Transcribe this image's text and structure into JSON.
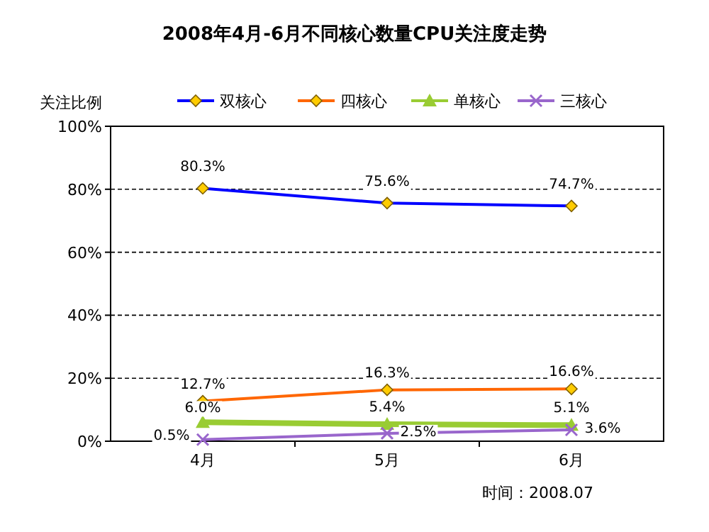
{
  "chart_data": {
    "type": "line",
    "title": "2008年4月-6月不同核心数量CPU关注度走势",
    "ylabel": "关注比例",
    "categories": [
      "4月",
      "5月",
      "6月"
    ],
    "series": [
      {
        "name": "双核心",
        "color": "#0000ff",
        "marker": "diamond",
        "values": [
          80.3,
          75.6,
          74.7
        ],
        "value_labels": [
          "80.3%",
          "75.6%",
          "74.7%"
        ]
      },
      {
        "name": "四核心",
        "color": "#ff6600",
        "marker": "diamond",
        "values": [
          12.7,
          16.3,
          16.6
        ],
        "value_labels": [
          "12.7%",
          "16.3%",
          "16.6%"
        ]
      },
      {
        "name": "单核心",
        "color": "#99cc33",
        "marker": "triangle",
        "values": [
          6.0,
          5.4,
          5.1
        ],
        "value_labels": [
          "6.0%",
          "5.4%",
          "5.1%"
        ]
      },
      {
        "name": "三核心",
        "color": "#9966cc",
        "marker": "cross",
        "values": [
          0.5,
          2.5,
          3.6
        ],
        "value_labels": [
          "0.5%",
          "2.5%",
          "3.6%"
        ]
      }
    ],
    "ylim": [
      0,
      100
    ],
    "yticks": [
      {
        "value": 0,
        "label": "0%"
      },
      {
        "value": 20,
        "label": "20%"
      },
      {
        "value": 40,
        "label": "40%"
      },
      {
        "value": 60,
        "label": "60%"
      },
      {
        "value": 80,
        "label": "80%"
      },
      {
        "value": 100,
        "label": "100%"
      }
    ],
    "grid": "y",
    "legend": "top",
    "annotations": [
      "时间：2008.07"
    ]
  }
}
